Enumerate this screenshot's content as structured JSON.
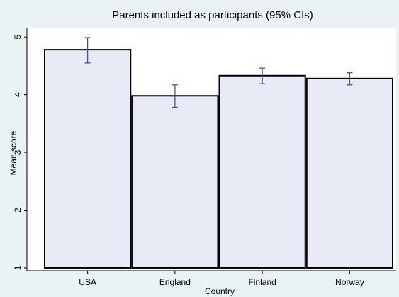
{
  "chart_data": {
    "type": "bar",
    "title": "Parents included as participants (95% CIs)",
    "xlabel": "Country",
    "ylabel": "Mean score",
    "categories": [
      "USA",
      "England",
      "Finland",
      "Norway"
    ],
    "values": [
      4.78,
      3.98,
      4.33,
      4.28
    ],
    "ci_low": [
      4.55,
      3.78,
      4.19,
      4.17
    ],
    "ci_high": [
      4.99,
      4.17,
      4.46,
      4.38
    ],
    "ylim": [
      0.95,
      5.15
    ],
    "yticks": [
      1,
      2,
      3,
      4,
      5
    ],
    "grid": false,
    "legend": "none",
    "colors": {
      "background": "#eaf2f3",
      "plot_area": "#ffffff",
      "bar_fill": "#e8ebf5",
      "bar_stroke": "#000000",
      "error_bar": "#3c5a84"
    }
  }
}
